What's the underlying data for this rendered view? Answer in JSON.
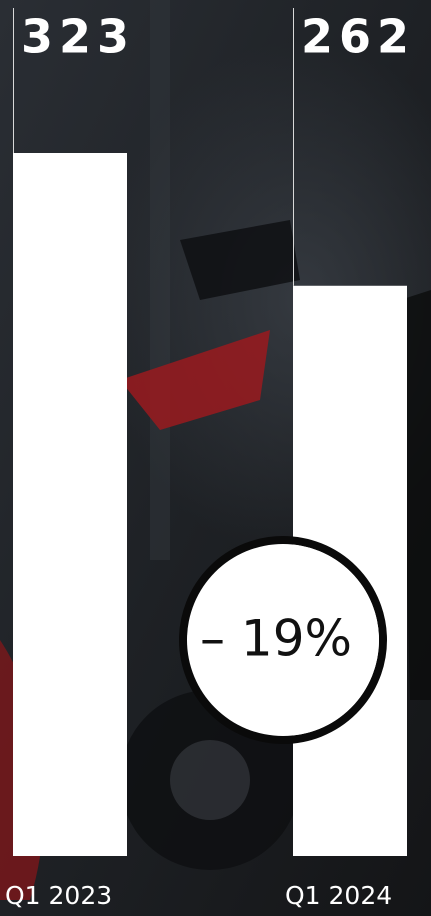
{
  "chart_data": {
    "type": "bar",
    "categories": [
      "Q1 2023",
      "Q1 2024"
    ],
    "values": [
      323,
      262
    ],
    "color": "#ffffff",
    "ylim": [
      0,
      323
    ],
    "annotation": "– 19%"
  }
}
